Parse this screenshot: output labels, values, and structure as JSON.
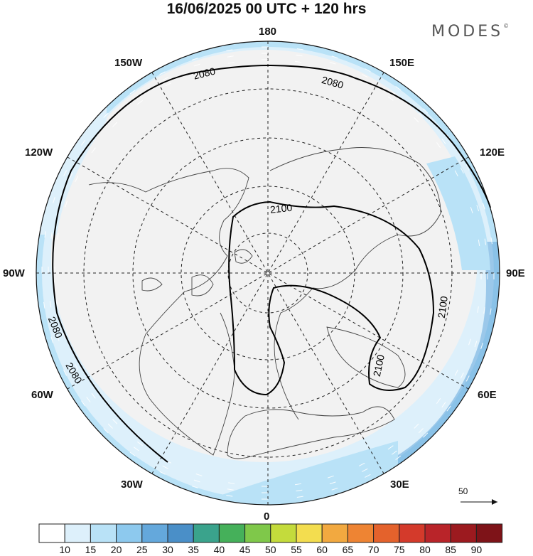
{
  "title": "16/06/2025  00 UTC  + 120 hrs",
  "brand": "MODES",
  "brand_mark": "©",
  "longitude_labels": {
    "north": "180",
    "south": "0",
    "west": "90W",
    "east": "90E",
    "nw_upper": "150W",
    "ne_upper": "150E",
    "nw_lower": "120W",
    "ne_lower": "120E",
    "sw_upper": "60W",
    "se_upper": "60E",
    "sw_lower": "30W",
    "se_lower": "30E"
  },
  "contours": [
    {
      "value": "2080",
      "labels": [
        "2080",
        "2080",
        "2080",
        "2080"
      ]
    },
    {
      "value": "2100",
      "labels": [
        "2100",
        "2100",
        "2100"
      ]
    }
  ],
  "reference_vector": {
    "label": "50"
  },
  "colorbar": {
    "ticks": [
      "10",
      "15",
      "20",
      "25",
      "30",
      "35",
      "40",
      "45",
      "50",
      "55",
      "60",
      "65",
      "70",
      "75",
      "80",
      "85",
      "90"
    ],
    "colors": [
      "#ffffff",
      "#ddf0fb",
      "#b9e2f7",
      "#8dc9ee",
      "#64a8dc",
      "#4a8fc8",
      "#3aa38c",
      "#45b05a",
      "#7fc84a",
      "#c4db3c",
      "#f3dd4f",
      "#f2a940",
      "#ee8433",
      "#e4622c",
      "#d43a2b",
      "#b92429",
      "#9c1a1f",
      "#7e1318"
    ]
  },
  "map_colors": {
    "ocean_background": "#f2f2f2",
    "land": "#f2f2f2",
    "outer_ring": "#b5dcf4"
  }
}
